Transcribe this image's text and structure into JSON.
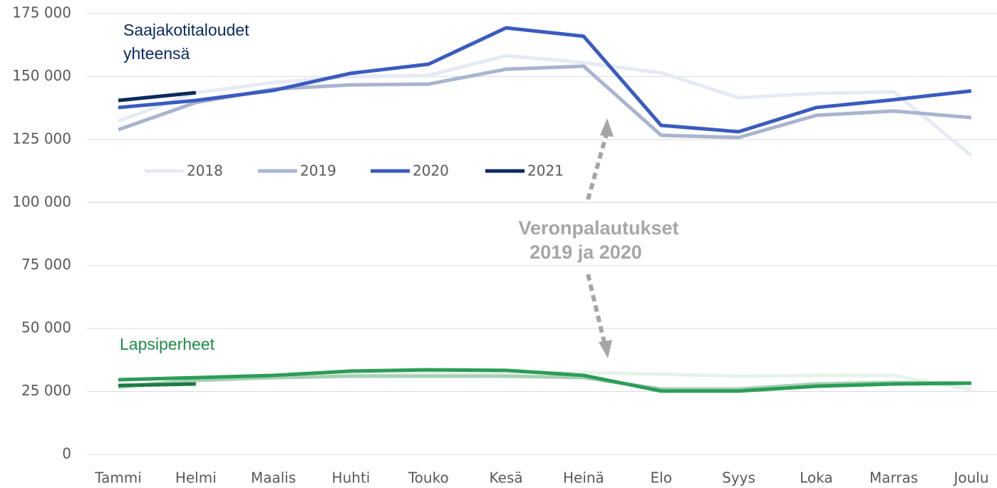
{
  "chart_data": {
    "type": "line",
    "categories": [
      "Tammi",
      "Helmi",
      "Maalis",
      "Huhti",
      "Touko",
      "Kesä",
      "Heinä",
      "Elo",
      "Syys",
      "Loka",
      "Marras",
      "Joulu"
    ],
    "series": [
      {
        "name": "2018",
        "color": "#e6eaf3",
        "values": [
          132300,
          143600,
          147600,
          150000,
          150400,
          158300,
          155500,
          151500,
          141600,
          143300,
          143900,
          118700
        ]
      },
      {
        "name": "2019",
        "color": "#a9b5ce",
        "values": [
          128900,
          139700,
          145000,
          146700,
          147000,
          152900,
          154100,
          126700,
          125800,
          134600,
          136300,
          133700
        ]
      },
      {
        "name": "2020",
        "color": "#3a5bbf",
        "values": [
          137700,
          140500,
          144500,
          151300,
          154900,
          169300,
          166000,
          130600,
          128100,
          137700,
          140800,
          144300
        ]
      },
      {
        "name": "2021",
        "color": "#0b2a5c",
        "values": [
          140500,
          143600,
          null,
          null,
          null,
          null,
          null,
          null,
          null,
          null,
          null,
          null
        ]
      },
      {
        "color": "#e6f2ea",
        "values": [
          26300,
          30000,
          31100,
          32200,
          32500,
          32500,
          32500,
          31900,
          31100,
          31400,
          31400,
          25700
        ]
      },
      {
        "color": "#a8cfb5",
        "values": [
          26900,
          29400,
          30500,
          31100,
          31100,
          31100,
          30500,
          26000,
          26000,
          28000,
          28600,
          28300
        ]
      },
      {
        "color": "#2a9d56",
        "values": [
          29700,
          30500,
          31400,
          33100,
          33600,
          33400,
          31400,
          25200,
          25200,
          27100,
          28000,
          28300
        ]
      },
      {
        "color": "#1e7a44",
        "values": [
          27400,
          28000,
          null,
          null,
          null,
          null,
          null,
          null,
          null,
          null,
          null,
          null
        ]
      }
    ],
    "ylim": [
      0,
      175000
    ],
    "yticks": [
      0,
      {
        "value": 25000,
        "label": "25 000"
      },
      {
        "value": 50000,
        "label": "50 000"
      },
      {
        "value": 75000,
        "label": "75 000"
      },
      {
        "value": 100000,
        "label": "100 000"
      },
      {
        "value": 125000,
        "label": "125 000"
      },
      {
        "value": 150000,
        "label": "150 000"
      },
      {
        "value": 175000,
        "label": "175 000"
      }
    ],
    "grid": true,
    "group_labels": [
      {
        "text": [
          "Saajakotitaloudet",
          "yhteensä"
        ],
        "color": "#0b2a5c"
      },
      {
        "text": [
          "Lapsiperheet"
        ],
        "color": "#1e8a48"
      }
    ],
    "annotation": [
      "Veronpalautukset",
      "2019 ja 2020"
    ]
  }
}
